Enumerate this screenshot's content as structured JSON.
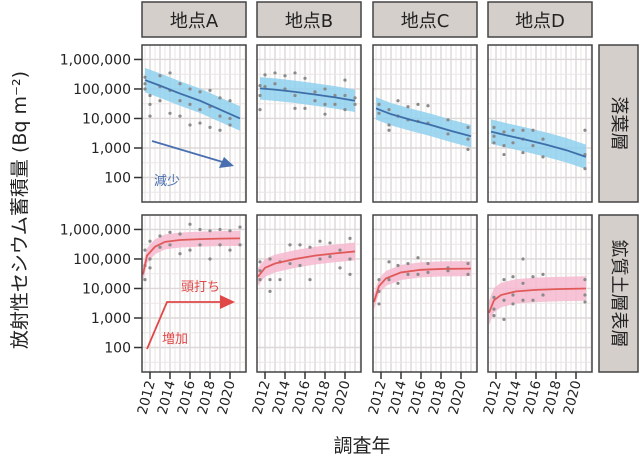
{
  "chart_data": {
    "type": "scatter",
    "title": "",
    "ylabel": "放射性セシウム蓄積量 (Bq m⁻²)",
    "xlabel": "調査年",
    "yscale": "log",
    "ylim": [
      14.8,
      3090000
    ],
    "xlim": [
      2011.2,
      2021.6
    ],
    "y_ticks": [
      {
        "v": 1000000,
        "label": "1,000,000"
      },
      {
        "v": 100000,
        "label": "100,000"
      },
      {
        "v": 10000,
        "label": "10,000"
      },
      {
        "v": 1000,
        "label": "1,000"
      },
      {
        "v": 100,
        "label": "100"
      }
    ],
    "x_ticks": [
      2012,
      2014,
      2016,
      2018,
      2020
    ],
    "columns": [
      "地点A",
      "地点B",
      "地点C",
      "地点D"
    ],
    "rows": [
      {
        "label": "落葉層",
        "line_color": "#3f6fa8",
        "band_color": "#8fd0ee",
        "point_color": "#8a8a8a"
      },
      {
        "label": "鉱質土層表層",
        "line_color": "#e05a5a",
        "band_color": "#f6b8cf",
        "point_color": "#8a8a8a"
      }
    ],
    "panels": [
      {
        "row": 0,
        "col": 0,
        "band_factor": 2.6,
        "fit": [
          [
            2011.5,
            200000
          ],
          [
            2013,
            130000
          ],
          [
            2015,
            70000
          ],
          [
            2017,
            40000
          ],
          [
            2019,
            20000
          ],
          [
            2021,
            10000
          ]
        ],
        "points": [
          [
            2011.5,
            250000
          ],
          [
            2011.5,
            150000
          ],
          [
            2011.5,
            100000
          ],
          [
            2012,
            60000
          ],
          [
            2012,
            30000
          ],
          [
            2012,
            12000
          ],
          [
            2013,
            280000
          ],
          [
            2013,
            120000
          ],
          [
            2013,
            40000
          ],
          [
            2014,
            350000
          ],
          [
            2014,
            90000
          ],
          [
            2014,
            15000
          ],
          [
            2015,
            150000
          ],
          [
            2015,
            40000
          ],
          [
            2015,
            12000
          ],
          [
            2016,
            100000
          ],
          [
            2016,
            30000
          ],
          [
            2016,
            6000
          ],
          [
            2017,
            80000
          ],
          [
            2017,
            20000
          ],
          [
            2017,
            7000
          ],
          [
            2018,
            90000
          ],
          [
            2018,
            25000
          ],
          [
            2018,
            5000
          ],
          [
            2019,
            50000
          ],
          [
            2019,
            12000
          ],
          [
            2019,
            4000
          ],
          [
            2020,
            40000
          ],
          [
            2020,
            10000
          ],
          [
            2020,
            6000
          ]
        ]
      },
      {
        "row": 0,
        "col": 1,
        "band_factor": 2.4,
        "fit": [
          [
            2011.5,
            105000
          ],
          [
            2013,
            95000
          ],
          [
            2015,
            80000
          ],
          [
            2017,
            65000
          ],
          [
            2019,
            52000
          ],
          [
            2021,
            40000
          ]
        ],
        "points": [
          [
            2011.5,
            130000
          ],
          [
            2011.5,
            60000
          ],
          [
            2011.5,
            20000
          ],
          [
            2012,
            300000
          ],
          [
            2012,
            120000
          ],
          [
            2013,
            350000
          ],
          [
            2013,
            150000
          ],
          [
            2014,
            280000
          ],
          [
            2014,
            100000
          ],
          [
            2015,
            350000
          ],
          [
            2015,
            60000
          ],
          [
            2015,
            22000
          ],
          [
            2016,
            230000
          ],
          [
            2016,
            22000
          ],
          [
            2017,
            80000
          ],
          [
            2017,
            40000
          ],
          [
            2018,
            100000
          ],
          [
            2018,
            30000
          ],
          [
            2018,
            14000
          ],
          [
            2019,
            60000
          ],
          [
            2019,
            30000
          ],
          [
            2020,
            200000
          ],
          [
            2020,
            60000
          ],
          [
            2020,
            20000
          ],
          [
            2021,
            50000
          ],
          [
            2021,
            30000
          ]
        ]
      },
      {
        "row": 0,
        "col": 2,
        "band_factor": 2.4,
        "fit": [
          [
            2011.5,
            22000
          ],
          [
            2013,
            14000
          ],
          [
            2015,
            9000
          ],
          [
            2017,
            6000
          ],
          [
            2019,
            3800
          ],
          [
            2021,
            2500
          ]
        ],
        "points": [
          [
            2011.8,
            30000
          ],
          [
            2011.8,
            15000
          ],
          [
            2012.8,
            20000
          ],
          [
            2012.8,
            6000
          ],
          [
            2012.8,
            4000
          ],
          [
            2013.7,
            40000
          ],
          [
            2013.7,
            12000
          ],
          [
            2014.7,
            25000
          ],
          [
            2014.7,
            9000
          ],
          [
            2015.7,
            30000
          ],
          [
            2015.7,
            8000
          ],
          [
            2016.7,
            27000
          ],
          [
            2016.7,
            7000
          ],
          [
            2018.7,
            9000
          ],
          [
            2018.7,
            3000
          ],
          [
            2020.7,
            5000
          ],
          [
            2020.7,
            2000
          ],
          [
            2020.7,
            900
          ]
        ]
      },
      {
        "row": 0,
        "col": 3,
        "band_factor": 2.6,
        "fit": [
          [
            2011.5,
            3600
          ],
          [
            2013,
            2700
          ],
          [
            2015,
            1900
          ],
          [
            2017,
            1300
          ],
          [
            2019,
            850
          ],
          [
            2021,
            500
          ]
        ],
        "points": [
          [
            2011.8,
            5000
          ],
          [
            2011.8,
            2500
          ],
          [
            2011.8,
            1500
          ],
          [
            2012.8,
            3500
          ],
          [
            2012.8,
            1200
          ],
          [
            2012.8,
            600
          ],
          [
            2013.7,
            4000
          ],
          [
            2013.7,
            1500
          ],
          [
            2014.7,
            4000
          ],
          [
            2014.7,
            2000
          ],
          [
            2014.7,
            700
          ],
          [
            2015.7,
            4000
          ],
          [
            2015.7,
            1200
          ],
          [
            2016.7,
            2000
          ],
          [
            2016.7,
            500
          ],
          [
            2020.9,
            4000
          ],
          [
            2020.9,
            600
          ],
          [
            2020.9,
            200
          ]
        ]
      },
      {
        "row": 1,
        "col": 0,
        "band_factor": 1.8,
        "fit": [
          [
            2011.3,
            30000
          ],
          [
            2011.7,
            130000
          ],
          [
            2012.5,
            260000
          ],
          [
            2013.5,
            380000
          ],
          [
            2015,
            440000
          ],
          [
            2017,
            470000
          ],
          [
            2019,
            490000
          ],
          [
            2021,
            500000
          ]
        ],
        "points": [
          [
            2011.5,
            200000
          ],
          [
            2011.5,
            60000
          ],
          [
            2011.5,
            20000
          ],
          [
            2012,
            400000
          ],
          [
            2012,
            100000
          ],
          [
            2012,
            50000
          ],
          [
            2013,
            600000
          ],
          [
            2013,
            250000
          ],
          [
            2014,
            800000
          ],
          [
            2014,
            300000
          ],
          [
            2015,
            700000
          ],
          [
            2015,
            150000
          ],
          [
            2016,
            1500000
          ],
          [
            2016,
            200000
          ],
          [
            2017,
            1000000
          ],
          [
            2017,
            300000
          ],
          [
            2018,
            900000
          ],
          [
            2018,
            100000
          ],
          [
            2019,
            1000000
          ],
          [
            2019,
            300000
          ],
          [
            2020,
            900000
          ],
          [
            2020,
            200000
          ],
          [
            2021,
            1200000
          ],
          [
            2021,
            300000
          ]
        ]
      },
      {
        "row": 1,
        "col": 1,
        "band_factor": 2.0,
        "fit": [
          [
            2011.3,
            25000
          ],
          [
            2012,
            50000
          ],
          [
            2013,
            70000
          ],
          [
            2015,
            100000
          ],
          [
            2017,
            130000
          ],
          [
            2019,
            155000
          ],
          [
            2021,
            180000
          ]
        ],
        "points": [
          [
            2011.5,
            80000
          ],
          [
            2011.5,
            40000
          ],
          [
            2011.5,
            20000
          ],
          [
            2012.5,
            100000
          ],
          [
            2012.5,
            20000
          ],
          [
            2012.5,
            8000
          ],
          [
            2013.5,
            80000
          ],
          [
            2013.5,
            20000
          ],
          [
            2014.5,
            300000
          ],
          [
            2014.5,
            70000
          ],
          [
            2015.5,
            300000
          ],
          [
            2015.5,
            60000
          ],
          [
            2016.5,
            250000
          ],
          [
            2016.5,
            20000
          ],
          [
            2017.5,
            400000
          ],
          [
            2017.5,
            100000
          ],
          [
            2018.5,
            350000
          ],
          [
            2018.5,
            120000
          ],
          [
            2019.5,
            200000
          ],
          [
            2019.5,
            50000
          ],
          [
            2020.5,
            500000
          ],
          [
            2020.5,
            100000
          ],
          [
            2020.5,
            30000
          ]
        ]
      },
      {
        "row": 1,
        "col": 2,
        "band_factor": 1.8,
        "fit": [
          [
            2011.3,
            3500
          ],
          [
            2011.8,
            12000
          ],
          [
            2012.5,
            22000
          ],
          [
            2014,
            35000
          ],
          [
            2016,
            43000
          ],
          [
            2018,
            46000
          ],
          [
            2021,
            47000
          ]
        ],
        "points": [
          [
            2011.8,
            20000
          ],
          [
            2011.8,
            8000
          ],
          [
            2011.8,
            3000
          ],
          [
            2012.8,
            80000
          ],
          [
            2012.8,
            20000
          ],
          [
            2013.7,
            60000
          ],
          [
            2013.7,
            15000
          ],
          [
            2014.7,
            70000
          ],
          [
            2014.7,
            30000
          ],
          [
            2015.7,
            110000
          ],
          [
            2015.7,
            30000
          ],
          [
            2016.7,
            70000
          ],
          [
            2016.7,
            35000
          ],
          [
            2018.7,
            50000
          ],
          [
            2018.7,
            40000
          ],
          [
            2020.7,
            70000
          ],
          [
            2020.7,
            30000
          ]
        ]
      },
      {
        "row": 1,
        "col": 3,
        "band_factor": 2.6,
        "fit": [
          [
            2011.3,
            1500
          ],
          [
            2011.8,
            4000
          ],
          [
            2012.5,
            6000
          ],
          [
            2014,
            8000
          ],
          [
            2016,
            9000
          ],
          [
            2018,
            9500
          ],
          [
            2021,
            10000
          ]
        ],
        "points": [
          [
            2011.8,
            5000
          ],
          [
            2011.8,
            2000
          ],
          [
            2011.8,
            1200
          ],
          [
            2012.8,
            20000
          ],
          [
            2012.8,
            4000
          ],
          [
            2012.8,
            900
          ],
          [
            2013.7,
            25000
          ],
          [
            2013.7,
            6000
          ],
          [
            2013.7,
            3000
          ],
          [
            2014.7,
            100000
          ],
          [
            2014.7,
            15000
          ],
          [
            2014.7,
            4000
          ],
          [
            2015.7,
            25000
          ],
          [
            2015.7,
            4000
          ],
          [
            2016.7,
            30000
          ],
          [
            2016.7,
            6000
          ],
          [
            2020.9,
            20000
          ],
          [
            2020.9,
            6000
          ],
          [
            2020.9,
            3500
          ]
        ]
      }
    ],
    "annotations": [
      {
        "row": 0,
        "col": 0,
        "text": "減少",
        "color": "#4a6fb0"
      },
      {
        "row": 1,
        "col": 0,
        "text": "頭打ち",
        "color": "#e04848"
      },
      {
        "row": 1,
        "col": 0,
        "text": "増加",
        "color": "#e04848"
      }
    ]
  }
}
